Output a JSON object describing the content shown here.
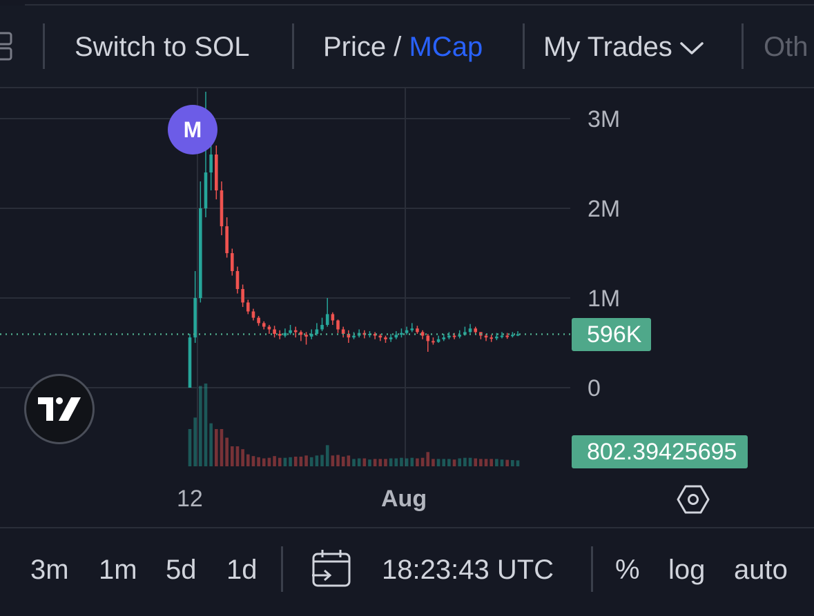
{
  "toolbar": {
    "switch_label": "Switch to SOL",
    "price_label": "Price /",
    "mcap_label": "MCap",
    "trades_label": "My Trades",
    "other_label": "Oth"
  },
  "marker": {
    "label": "M",
    "color": "#6c5ce7"
  },
  "price_tags": {
    "last": "596K",
    "volume": "802.39425695"
  },
  "bottom": {
    "intervals": [
      "3m",
      "1m",
      "5d",
      "1d"
    ],
    "time": "18:23:43 UTC",
    "percent": "%",
    "log": "log",
    "auto": "auto"
  },
  "icons": {
    "layout": "layout-icon",
    "chevron": "chevron-down-icon",
    "logo": "tradingview-logo",
    "settings": "settings-icon",
    "calendar": "calendar-range-icon"
  },
  "colors": {
    "background": "#151823",
    "up": "#26a69a",
    "down": "#ef5350",
    "accent": "#2962ff",
    "tag": "#4fa88a",
    "marker": "#6c5ce7"
  },
  "chart_data": {
    "type": "candlestick",
    "y_ticks": [
      "3M",
      "2M",
      "1M",
      "0"
    ],
    "y_tick_values": [
      3000000,
      2000000,
      1000000,
      0
    ],
    "ylim": [
      0,
      3300000
    ],
    "x_ticks": [
      "12",
      "Aug"
    ],
    "last_value": 596000,
    "grid": true,
    "series": [
      {
        "open": [
          0,
          560000,
          1000000,
          2000000,
          2400000,
          2600000,
          2200000,
          1800000,
          1500000,
          1300000,
          1100000,
          950000,
          850000,
          780000,
          720000,
          680000,
          650000,
          600000,
          580000,
          610000,
          640000,
          620000,
          590000,
          570000,
          600000,
          650000,
          700000,
          820000,
          750000,
          650000,
          600000,
          560000,
          580000,
          610000,
          590000,
          600000,
          580000,
          560000,
          540000,
          560000,
          590000,
          610000,
          640000,
          660000,
          620000,
          580000,
          520000,
          510000,
          540000,
          560000,
          580000,
          570000,
          590000,
          620000,
          660000,
          620000,
          580000,
          560000,
          550000,
          570000,
          580000,
          575000,
          590000
        ],
        "close": [
          560000,
          1000000,
          2000000,
          2400000,
          2600000,
          2200000,
          1800000,
          1500000,
          1300000,
          1100000,
          950000,
          850000,
          780000,
          720000,
          680000,
          650000,
          600000,
          580000,
          610000,
          640000,
          620000,
          590000,
          570000,
          600000,
          650000,
          700000,
          820000,
          750000,
          650000,
          600000,
          560000,
          580000,
          610000,
          590000,
          600000,
          580000,
          560000,
          540000,
          560000,
          590000,
          610000,
          640000,
          660000,
          620000,
          580000,
          520000,
          510000,
          540000,
          560000,
          580000,
          570000,
          590000,
          620000,
          660000,
          620000,
          580000,
          560000,
          550000,
          570000,
          580000,
          575000,
          590000,
          596000
        ],
        "high": [
          600000,
          1300000,
          2300000,
          3300000,
          2900000,
          2700000,
          2300000,
          1900000,
          1550000,
          1350000,
          1150000,
          980000,
          880000,
          800000,
          740000,
          700000,
          690000,
          640000,
          660000,
          700000,
          680000,
          640000,
          620000,
          650000,
          720000,
          780000,
          1000000,
          840000,
          760000,
          680000,
          640000,
          620000,
          650000,
          640000,
          630000,
          620000,
          600000,
          580000,
          600000,
          630000,
          660000,
          680000,
          720000,
          690000,
          640000,
          600000,
          560000,
          580000,
          600000,
          620000,
          610000,
          640000,
          680000,
          710000,
          680000,
          620000,
          600000,
          590000,
          610000,
          620000,
          610000,
          620000,
          630000
        ],
        "low": [
          0,
          500000,
          950000,
          1900000,
          2200000,
          2100000,
          1700000,
          1450000,
          1250000,
          1050000,
          900000,
          820000,
          750000,
          690000,
          650000,
          600000,
          560000,
          540000,
          560000,
          590000,
          560000,
          520000,
          480000,
          540000,
          580000,
          630000,
          680000,
          700000,
          610000,
          560000,
          500000,
          540000,
          560000,
          550000,
          560000,
          540000,
          520000,
          500000,
          510000,
          540000,
          560000,
          590000,
          620000,
          600000,
          540000,
          400000,
          480000,
          500000,
          520000,
          540000,
          540000,
          550000,
          580000,
          610000,
          590000,
          540000,
          520000,
          510000,
          530000,
          550000,
          545000,
          560000,
          575000
        ]
      }
    ],
    "volume_label": "802.39425695"
  }
}
